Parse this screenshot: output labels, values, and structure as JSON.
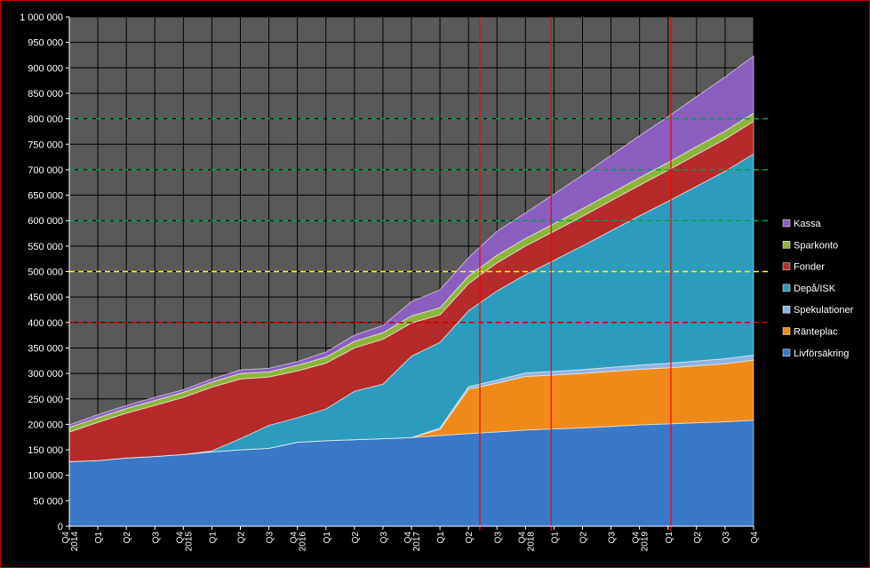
{
  "chart_data": {
    "type": "area",
    "stacked": true,
    "ylim": [
      0,
      1000000
    ],
    "ytick_step": 50000,
    "ytick_labels": [
      "0",
      "50 000",
      "100 000",
      "150 000",
      "200 000",
      "250 000",
      "300 000",
      "350 000",
      "400 000",
      "450 000",
      "500 000",
      "550 000",
      "600 000",
      "650 000",
      "700 000",
      "750 000",
      "800 000",
      "850 000",
      "900 000",
      "950 000",
      "1 000 000"
    ],
    "categories": [
      "Q4 2014",
      "Q1",
      "Q2",
      "Q3",
      "Q4 2015",
      "Q1",
      "Q2",
      "Q3",
      "Q4 2016",
      "Q1",
      "Q2",
      "Q3",
      "Q4 2017",
      "Q1",
      "Q2",
      "Q3",
      "Q4 2018",
      "Q1",
      "Q2",
      "Q3",
      "Q4 2019",
      "Q1",
      "Q2",
      "Q3",
      "Q4"
    ],
    "x_label_lines": [
      [
        "Q4",
        "2014"
      ],
      [
        "Q1"
      ],
      [
        "Q2"
      ],
      [
        "Q3"
      ],
      [
        "Q4",
        "2015"
      ],
      [
        "Q1"
      ],
      [
        "Q2"
      ],
      [
        "Q3"
      ],
      [
        "Q4",
        "2016"
      ],
      [
        "Q1"
      ],
      [
        "Q2"
      ],
      [
        "Q3"
      ],
      [
        "Q4",
        "2017"
      ],
      [
        "Q1"
      ],
      [
        "Q2"
      ],
      [
        "Q3"
      ],
      [
        "Q4",
        "2018"
      ],
      [
        "Q1"
      ],
      [
        "Q2"
      ],
      [
        "Q3"
      ],
      [
        "Q4",
        "2019"
      ],
      [
        "Q1"
      ],
      [
        "Q2"
      ],
      [
        "Q3"
      ],
      [
        "Q4"
      ]
    ],
    "series": [
      {
        "name": "Livförsäkring",
        "color": "#3a78c8",
        "values": [
          127000,
          129000,
          134000,
          137000,
          141000,
          146000,
          150000,
          153000,
          165000,
          168000,
          170000,
          172000,
          174000,
          178000,
          182000,
          185000,
          189000,
          191000,
          193000,
          196000,
          199000,
          201000,
          203000,
          205000,
          208000
        ]
      },
      {
        "name": "Ränteplac",
        "color": "#f08a1a",
        "values": [
          0,
          0,
          0,
          0,
          0,
          0,
          0,
          0,
          0,
          0,
          0,
          0,
          0,
          12000,
          87000,
          96000,
          105000,
          106000,
          107000,
          108000,
          109000,
          110000,
          112000,
          114000,
          118000
        ]
      },
      {
        "name": "Spekulationer",
        "color": "#8eb4e3",
        "values": [
          0,
          0,
          0,
          0,
          0,
          0,
          0,
          0,
          0,
          0,
          0,
          0,
          0,
          3000,
          5000,
          6000,
          7000,
          7000,
          7500,
          8000,
          8500,
          9000,
          9500,
          10000,
          10000
        ]
      },
      {
        "name": "Depå/ISK",
        "color": "#2d9bbd",
        "values": [
          0,
          0,
          0,
          0,
          0,
          2000,
          22000,
          45000,
          48000,
          62000,
          95000,
          107000,
          160000,
          168000,
          149000,
          175000,
          193000,
          218000,
          243000,
          268000,
          293000,
          318000,
          343000,
          368000,
          395000
        ]
      },
      {
        "name": "Fonder",
        "color": "#b52a2a",
        "values": [
          58000,
          75000,
          88000,
          100000,
          112000,
          125000,
          117000,
          95000,
          92000,
          90000,
          85000,
          88000,
          65000,
          54000,
          53000,
          55000,
          56000,
          57000,
          58000,
          59000,
          60000,
          61000,
          62000,
          63000,
          64000
        ]
      },
      {
        "name": "Sparkonto",
        "color": "#8db53a",
        "values": [
          9000,
          9000,
          9000,
          10000,
          10000,
          10000,
          11000,
          10000,
          11000,
          12000,
          13000,
          13000,
          14000,
          14000,
          15000,
          15000,
          15000,
          15000,
          15000,
          15000,
          15000,
          15000,
          16000,
          16000,
          16000
        ]
      },
      {
        "name": "Kassa",
        "color": "#8a5fc0",
        "values": [
          5000,
          6000,
          6000,
          6000,
          5000,
          6000,
          7000,
          7000,
          7000,
          10000,
          12000,
          14000,
          28000,
          35000,
          36000,
          47000,
          50000,
          58000,
          66000,
          74000,
          82000,
          90000,
          98000,
          106000,
          112000
        ]
      }
    ],
    "legend": {
      "position": "right",
      "order": [
        "Kassa",
        "Sparkonto",
        "Fonder",
        "Depå/ISK",
        "Spekulationer",
        "Ränteplac",
        "Livförsäkring"
      ]
    },
    "reference_lines": [
      {
        "axis": "y",
        "value": 400000,
        "color": "#cc0000",
        "style": "dashed"
      },
      {
        "axis": "y",
        "value": 500000,
        "color": "#ffff00",
        "style": "dashed"
      },
      {
        "axis": "y",
        "value": 600000,
        "color": "#00a050",
        "style": "dashed"
      },
      {
        "axis": "y",
        "value": 700000,
        "color": "#00a050",
        "style": "dashed"
      },
      {
        "axis": "y",
        "value": 800000,
        "color": "#00a050",
        "style": "dashed"
      },
      {
        "axis": "x",
        "value": 14.4,
        "color": "#ff0000",
        "style": "solid"
      },
      {
        "axis": "x",
        "value": 16.9,
        "color": "#ff0000",
        "style": "solid"
      },
      {
        "axis": "x",
        "value": 21.1,
        "color": "#ff0000",
        "style": "solid"
      }
    ],
    "grid": true,
    "plot_background": "#595959",
    "grid_color": "#000000",
    "text_color": "#ffffff"
  }
}
